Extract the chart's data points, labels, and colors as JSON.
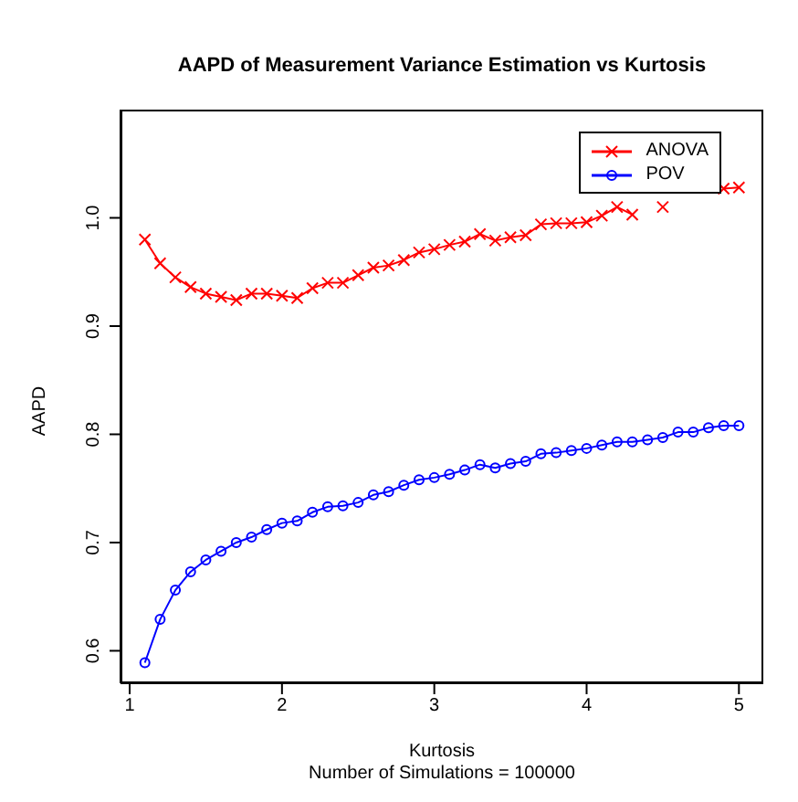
{
  "chart_data": {
    "type": "line",
    "title": "AAPD of Measurement Variance Estimation vs Kurtosis",
    "xlabel": "Kurtosis",
    "ylabel": "AAPD",
    "annotations": [
      "Number of Simulations = 100000"
    ],
    "x": [
      1.1,
      1.2,
      1.3,
      1.4,
      1.5,
      1.6,
      1.7,
      1.8,
      1.9,
      2.0,
      2.1,
      2.2,
      2.3,
      2.4,
      2.5,
      2.6,
      2.7,
      2.8,
      2.9,
      3.0,
      3.1,
      3.2,
      3.3,
      3.4,
      3.5,
      3.6,
      3.7,
      3.8,
      3.9,
      4.0,
      4.1,
      4.2,
      4.3,
      4.4,
      4.5,
      4.6,
      4.7,
      4.8,
      4.9,
      5.0
    ],
    "series": [
      {
        "name": "ANOVA",
        "color": "#ff0000",
        "marker": "cross",
        "values": [
          0.98,
          0.958,
          0.945,
          0.936,
          0.93,
          0.927,
          0.924,
          0.93,
          0.93,
          0.928,
          0.926,
          0.935,
          0.94,
          0.94,
          0.947,
          0.954,
          0.956,
          0.961,
          0.968,
          0.971,
          0.975,
          0.978,
          0.985,
          0.979,
          0.982,
          0.984,
          0.994,
          0.995,
          0.995,
          0.996,
          1.002,
          1.01,
          1.003,
          null,
          1.01,
          null,
          null,
          null,
          1.027,
          1.028
        ]
      },
      {
        "name": "POV",
        "color": "#0000ff",
        "marker": "circle",
        "values": [
          0.589,
          0.629,
          0.656,
          0.673,
          0.684,
          0.692,
          0.7,
          0.705,
          0.712,
          0.718,
          0.72,
          0.728,
          0.733,
          0.734,
          0.737,
          0.744,
          0.747,
          0.753,
          0.758,
          0.76,
          0.763,
          0.767,
          0.772,
          0.769,
          0.773,
          0.775,
          0.782,
          0.783,
          0.785,
          0.787,
          0.79,
          0.793,
          0.793,
          0.795,
          0.797,
          0.802,
          0.802,
          0.806,
          0.808,
          0.808
        ]
      }
    ],
    "xlim": [
      0.94,
      5.16
    ],
    "ylim": [
      0.57,
      1.1
    ],
    "xticks": [
      1,
      2,
      3,
      4,
      5
    ],
    "yticks": [
      0.6,
      0.7,
      0.8,
      0.9,
      {
        "value": 1.0,
        "label": "1.0"
      }
    ],
    "grid": false,
    "legend": "top right",
    "line_style": "solid"
  }
}
